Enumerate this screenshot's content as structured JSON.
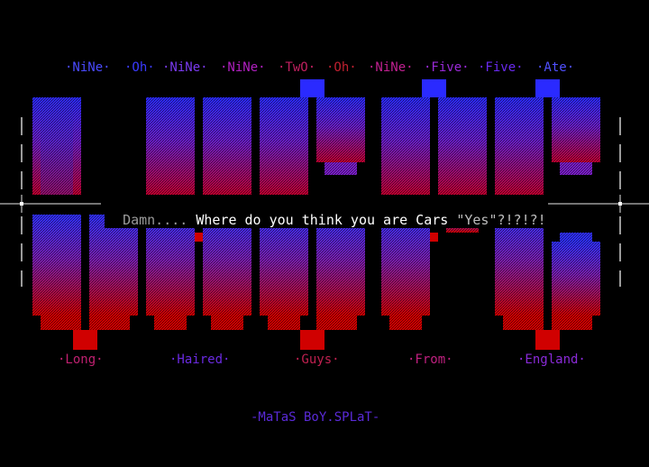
{
  "colors": {
    "background": "#000000",
    "blue": "#2b2bff",
    "purple": "#8a1fd6",
    "red": "#c80000",
    "magenta": "#c0208a",
    "grey": "#9a9a9a",
    "white": "#ffffff"
  },
  "top_words": [
    {
      "text": "·NiNe·",
      "color": "#4a4aff"
    },
    {
      "text": "·Oh·",
      "color": "#3a3aff"
    },
    {
      "text": "·NiNe·",
      "color": "#7a3af0"
    },
    {
      "text": "·NiNe·",
      "color": "#b020c0"
    },
    {
      "text": "·TwO·",
      "color": "#c02060"
    },
    {
      "text": "·Oh·",
      "color": "#c02030"
    },
    {
      "text": "·NiNe·",
      "color": "#c02090"
    },
    {
      "text": "·Five·",
      "color": "#9a2ad8"
    },
    {
      "text": "·Five·",
      "color": "#6a2af0"
    },
    {
      "text": "·Ate·",
      "color": "#5050ff"
    }
  ],
  "divider_line": {
    "prefix": "Damn....",
    "middle": " Where do you think you are Cars ",
    "quote": "\"Yes\"?!?!?!"
  },
  "bottom_words": [
    {
      "text": "·Long·",
      "color": "#c02070"
    },
    {
      "text": "·Haired·",
      "color": "#6a2ae0"
    },
    {
      "text": "·Guys·",
      "color": "#c02050"
    },
    {
      "text": "·From·",
      "color": "#c02080"
    },
    {
      "text": "·England·",
      "color": "#8a2ad8"
    }
  ],
  "signature": "-MaTaS BoY.SPLaT-"
}
